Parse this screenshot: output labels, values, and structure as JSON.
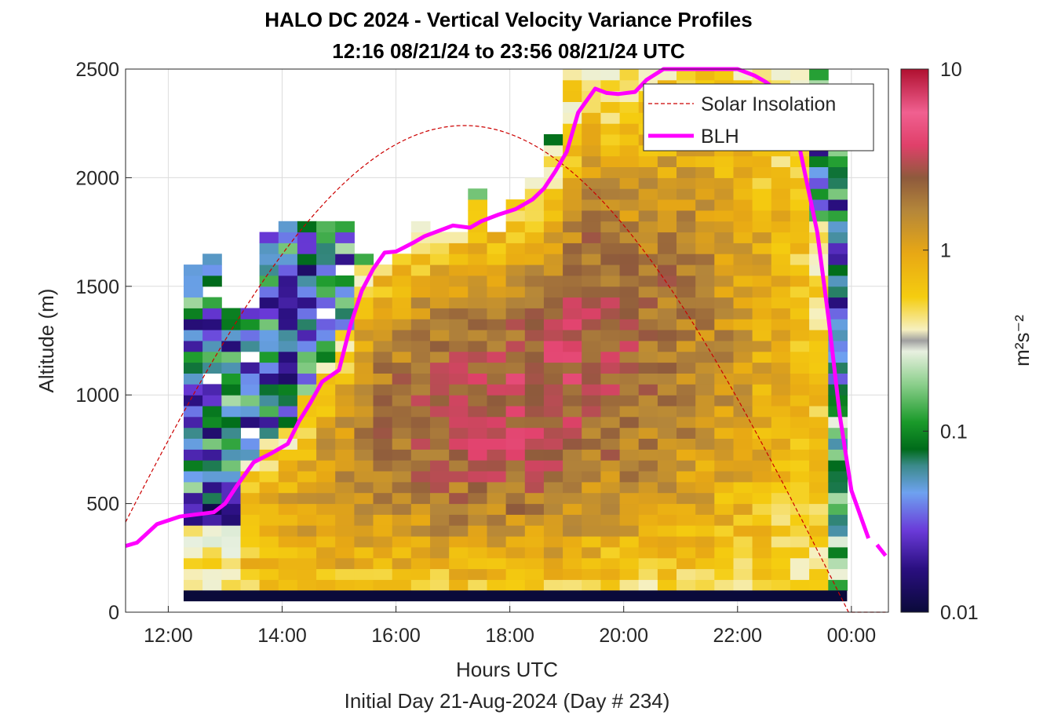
{
  "chart_data": {
    "type": "heatmap",
    "title": "HALO DC 2024 - Vertical Velocity Variance Profiles",
    "subtitle": "12:16 08/21/24 to 23:56 08/21/24  UTC",
    "xlabel": "Hours UTC",
    "footer": "Initial Day 21-Aug-2024 (Day # 234)",
    "ylabel": "Altitude (m)",
    "colorbar_label": "m²s⁻²",
    "colorbar_scale": "log",
    "colorbar_range": [
      0.01,
      10
    ],
    "colorbar_ticks": [
      "0.01",
      "0.1",
      "1",
      "10"
    ],
    "x_tick_labels": [
      "12:00",
      "14:00",
      "16:00",
      "18:00",
      "20:00",
      "22:00",
      "00:00"
    ],
    "y_tick_labels": [
      "0",
      "500",
      "1000",
      "1500",
      "2000",
      "2500"
    ],
    "xlim_hours": [
      11.25,
      24.65
    ],
    "ylim": [
      0,
      2500
    ],
    "grid": true,
    "legend_position": "top-right",
    "legend": [
      {
        "name": "Solar Insolation",
        "color": "#cc0000",
        "style": "dashed"
      },
      {
        "name": "BLH",
        "color": "#ff00ff",
        "style": "solid"
      }
    ],
    "heatmap": {
      "x_start_hour": 12.27,
      "x_step_hour": 0.333,
      "columns": 35,
      "altitude_start": 100,
      "altitude_step": 50,
      "note_values": "w'w' variance, log10 scale approx"
    },
    "blh": {
      "x": [
        11.25,
        11.45,
        11.8,
        12.2,
        12.5,
        12.8,
        13.0,
        13.2,
        13.5,
        13.8,
        14.1,
        14.3,
        14.5,
        14.7,
        15.0,
        15.2,
        15.4,
        15.6,
        15.8,
        16.0,
        16.3,
        16.5,
        16.8,
        17.0,
        17.3,
        17.5,
        17.8,
        18.1,
        18.4,
        18.6,
        18.8,
        19.0,
        19.2,
        19.5,
        19.7,
        19.9,
        20.2,
        20.4,
        20.7,
        20.9,
        21.2,
        21.5,
        21.8,
        22.0,
        22.3,
        22.5,
        22.8,
        23.0,
        23.2,
        23.4,
        23.6,
        23.8,
        24.0,
        24.3
      ],
      "y": [
        305,
        320,
        405,
        440,
        450,
        460,
        500,
        580,
        690,
        730,
        775,
        880,
        965,
        1060,
        1115,
        1320,
        1480,
        1580,
        1655,
        1660,
        1700,
        1730,
        1760,
        1780,
        1770,
        1800,
        1830,
        1855,
        1900,
        1950,
        2030,
        2120,
        2300,
        2410,
        2390,
        2385,
        2395,
        2450,
        2500,
        2520,
        2530,
        2530,
        2510,
        2500,
        2470,
        2440,
        2380,
        2250,
        2000,
        1750,
        1350,
        900,
        560,
        340
      ]
    },
    "blh_tail": {
      "x": [
        24.45,
        24.6
      ],
      "y": [
        310,
        260
      ]
    },
    "solar": {
      "peak_hour": 17.2,
      "peak_altitude": 2240,
      "sunset_hour": 23.95,
      "sunrise_hour": 10.45
    }
  }
}
